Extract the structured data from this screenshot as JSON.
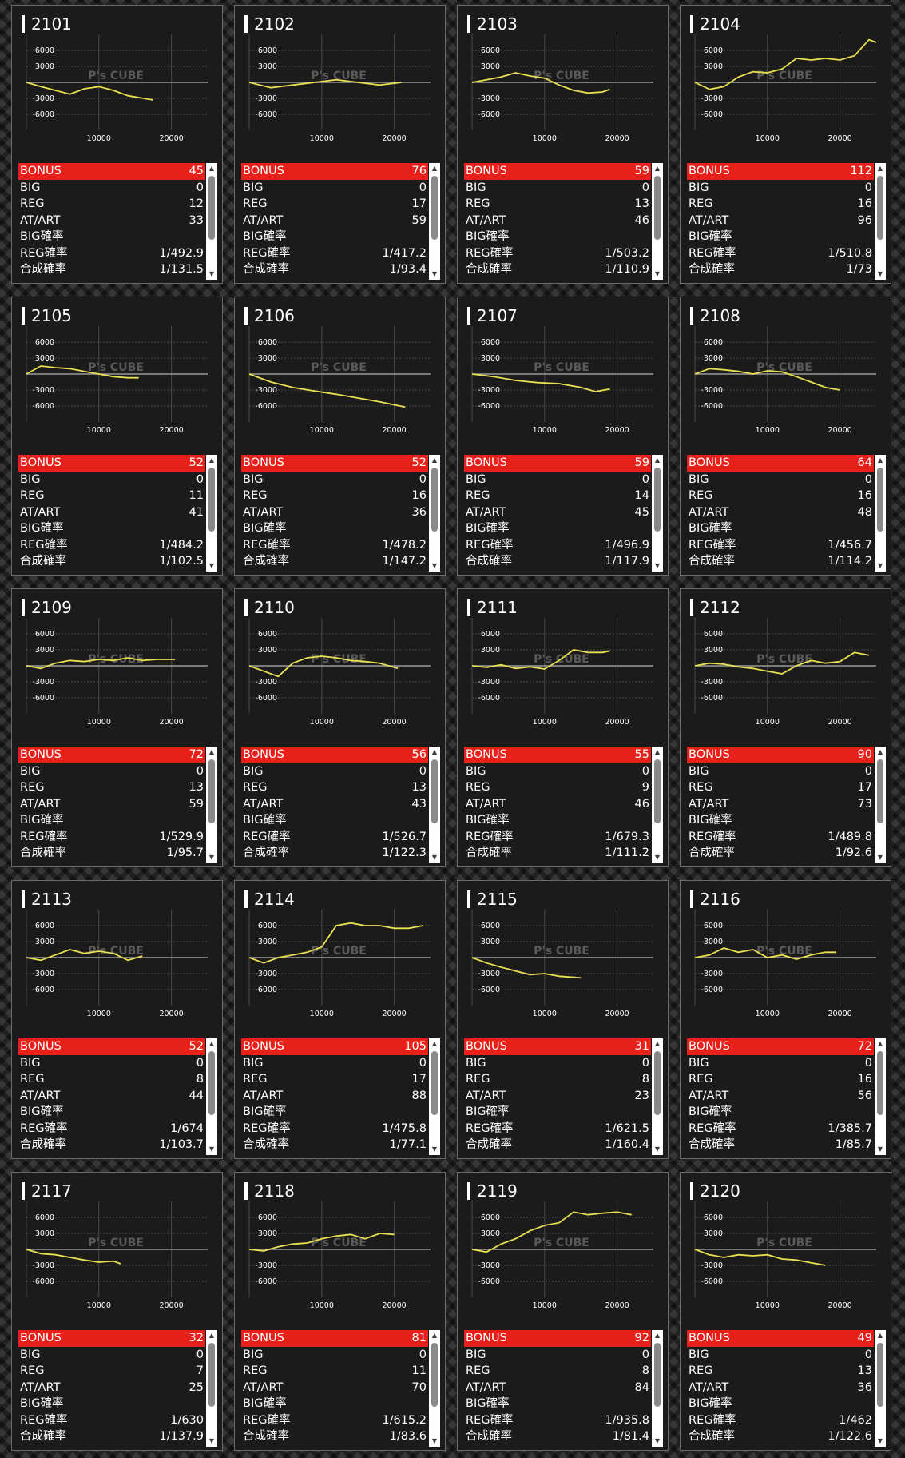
{
  "stat_labels": {
    "bonus": "BONUS",
    "big": "BIG",
    "reg": "REG",
    "at": "AT/ART",
    "big_rate": "BIG確率",
    "reg_rate": "REG確率",
    "total_rate": "合成確率"
  },
  "watermark": "P's CUBE",
  "colors": {
    "background": "#1b1b1b",
    "bonus_bar": "#e8201a",
    "line": "#e8e050",
    "grid": "#4a4a4a",
    "zero_line": "#9a9a9a"
  },
  "machines": [
    {
      "id": "2101",
      "bonus": "45",
      "big": "0",
      "reg": "12",
      "at": "33",
      "big_rate": "",
      "reg_rate": "1/492.9",
      "total_rate": "1/131.5"
    },
    {
      "id": "2102",
      "bonus": "76",
      "big": "0",
      "reg": "17",
      "at": "59",
      "big_rate": "",
      "reg_rate": "1/417.2",
      "total_rate": "1/93.4"
    },
    {
      "id": "2103",
      "bonus": "59",
      "big": "0",
      "reg": "13",
      "at": "46",
      "big_rate": "",
      "reg_rate": "1/503.2",
      "total_rate": "1/110.9"
    },
    {
      "id": "2104",
      "bonus": "112",
      "big": "0",
      "reg": "16",
      "at": "96",
      "big_rate": "",
      "reg_rate": "1/510.8",
      "total_rate": "1/73"
    },
    {
      "id": "2105",
      "bonus": "52",
      "big": "0",
      "reg": "11",
      "at": "41",
      "big_rate": "",
      "reg_rate": "1/484.2",
      "total_rate": "1/102.5"
    },
    {
      "id": "2106",
      "bonus": "52",
      "big": "0",
      "reg": "16",
      "at": "36",
      "big_rate": "",
      "reg_rate": "1/478.2",
      "total_rate": "1/147.2"
    },
    {
      "id": "2107",
      "bonus": "59",
      "big": "0",
      "reg": "14",
      "at": "45",
      "big_rate": "",
      "reg_rate": "1/496.9",
      "total_rate": "1/117.9"
    },
    {
      "id": "2108",
      "bonus": "64",
      "big": "0",
      "reg": "16",
      "at": "48",
      "big_rate": "",
      "reg_rate": "1/456.7",
      "total_rate": "1/114.2"
    },
    {
      "id": "2109",
      "bonus": "72",
      "big": "0",
      "reg": "13",
      "at": "59",
      "big_rate": "",
      "reg_rate": "1/529.9",
      "total_rate": "1/95.7"
    },
    {
      "id": "2110",
      "bonus": "56",
      "big": "0",
      "reg": "13",
      "at": "43",
      "big_rate": "",
      "reg_rate": "1/526.7",
      "total_rate": "1/122.3"
    },
    {
      "id": "2111",
      "bonus": "55",
      "big": "0",
      "reg": "9",
      "at": "46",
      "big_rate": "",
      "reg_rate": "1/679.3",
      "total_rate": "1/111.2"
    },
    {
      "id": "2112",
      "bonus": "90",
      "big": "0",
      "reg": "17",
      "at": "73",
      "big_rate": "",
      "reg_rate": "1/489.8",
      "total_rate": "1/92.6"
    },
    {
      "id": "2113",
      "bonus": "52",
      "big": "0",
      "reg": "8",
      "at": "44",
      "big_rate": "",
      "reg_rate": "1/674",
      "total_rate": "1/103.7"
    },
    {
      "id": "2114",
      "bonus": "105",
      "big": "0",
      "reg": "17",
      "at": "88",
      "big_rate": "",
      "reg_rate": "1/475.8",
      "total_rate": "1/77.1"
    },
    {
      "id": "2115",
      "bonus": "31",
      "big": "0",
      "reg": "8",
      "at": "23",
      "big_rate": "",
      "reg_rate": "1/621.5",
      "total_rate": "1/160.4"
    },
    {
      "id": "2116",
      "bonus": "72",
      "big": "0",
      "reg": "16",
      "at": "56",
      "big_rate": "",
      "reg_rate": "1/385.7",
      "total_rate": "1/85.7"
    },
    {
      "id": "2117",
      "bonus": "32",
      "big": "0",
      "reg": "7",
      "at": "25",
      "big_rate": "",
      "reg_rate": "1/630",
      "total_rate": "1/137.9"
    },
    {
      "id": "2118",
      "bonus": "81",
      "big": "0",
      "reg": "11",
      "at": "70",
      "big_rate": "",
      "reg_rate": "1/615.2",
      "total_rate": "1/83.6"
    },
    {
      "id": "2119",
      "bonus": "92",
      "big": "0",
      "reg": "8",
      "at": "84",
      "big_rate": "",
      "reg_rate": "1/935.8",
      "total_rate": "1/81.4"
    },
    {
      "id": "2120",
      "bonus": "49",
      "big": "0",
      "reg": "13",
      "at": "36",
      "big_rate": "",
      "reg_rate": "1/462",
      "total_rate": "1/122.6"
    }
  ],
  "chart_data": {
    "type": "line",
    "x_ticks": [
      10000,
      20000
    ],
    "y_ticks": [
      6000,
      3000,
      -3000,
      -6000
    ],
    "xlim": [
      0,
      25000
    ],
    "ylim": [
      -9000,
      9000
    ],
    "series": [
      [
        [
          0,
          0
        ],
        [
          2000,
          -800
        ],
        [
          4000,
          -1500
        ],
        [
          6000,
          -2200
        ],
        [
          8000,
          -1200
        ],
        [
          10000,
          -800
        ],
        [
          12000,
          -1500
        ],
        [
          14000,
          -2500
        ],
        [
          17500,
          -3300
        ]
      ],
      [
        [
          0,
          0
        ],
        [
          3000,
          -1000
        ],
        [
          6000,
          -500
        ],
        [
          9000,
          0
        ],
        [
          12000,
          500
        ],
        [
          15000,
          0
        ],
        [
          18000,
          -500
        ],
        [
          21000,
          0
        ]
      ],
      [
        [
          0,
          0
        ],
        [
          2000,
          500
        ],
        [
          4000,
          1000
        ],
        [
          6000,
          1800
        ],
        [
          8000,
          1200
        ],
        [
          10000,
          800
        ],
        [
          12000,
          -500
        ],
        [
          14000,
          -1500
        ],
        [
          16000,
          -2000
        ],
        [
          18000,
          -1800
        ],
        [
          19000,
          -1300
        ]
      ],
      [
        [
          0,
          0
        ],
        [
          2000,
          -1300
        ],
        [
          4000,
          -800
        ],
        [
          6000,
          1000
        ],
        [
          8000,
          2000
        ],
        [
          10000,
          1800
        ],
        [
          12000,
          2500
        ],
        [
          14000,
          4500
        ],
        [
          16000,
          4200
        ],
        [
          18000,
          4500
        ],
        [
          20000,
          4200
        ],
        [
          22000,
          5000
        ],
        [
          24000,
          8000
        ],
        [
          25000,
          7500
        ]
      ],
      [
        [
          0,
          0
        ],
        [
          2000,
          1500
        ],
        [
          4000,
          1200
        ],
        [
          6000,
          1000
        ],
        [
          8000,
          500
        ],
        [
          10000,
          0
        ],
        [
          12000,
          -500
        ],
        [
          14000,
          -700
        ],
        [
          15500,
          -700
        ]
      ],
      [
        [
          0,
          0
        ],
        [
          3000,
          -1500
        ],
        [
          6000,
          -2500
        ],
        [
          9000,
          -3200
        ],
        [
          12000,
          -3800
        ],
        [
          15000,
          -4500
        ],
        [
          18000,
          -5200
        ],
        [
          21500,
          -6200
        ]
      ],
      [
        [
          0,
          0
        ],
        [
          3000,
          -500
        ],
        [
          6000,
          -1200
        ],
        [
          9000,
          -1600
        ],
        [
          12000,
          -1800
        ],
        [
          15000,
          -2500
        ],
        [
          17000,
          -3300
        ],
        [
          19000,
          -2800
        ]
      ],
      [
        [
          0,
          0
        ],
        [
          2000,
          1000
        ],
        [
          4000,
          800
        ],
        [
          6000,
          500
        ],
        [
          8000,
          0
        ],
        [
          10000,
          600
        ],
        [
          12000,
          400
        ],
        [
          14000,
          -500
        ],
        [
          16000,
          -1500
        ],
        [
          18000,
          -2500
        ],
        [
          20000,
          -3000
        ]
      ],
      [
        [
          0,
          0
        ],
        [
          2000,
          -500
        ],
        [
          4000,
          500
        ],
        [
          6000,
          1000
        ],
        [
          8000,
          800
        ],
        [
          10000,
          1200
        ],
        [
          12000,
          1000
        ],
        [
          14000,
          1500
        ],
        [
          16000,
          1000
        ],
        [
          18000,
          1200
        ],
        [
          20500,
          1200
        ]
      ],
      [
        [
          0,
          0
        ],
        [
          2000,
          -1000
        ],
        [
          4000,
          -2000
        ],
        [
          6000,
          500
        ],
        [
          8000,
          1500
        ],
        [
          10000,
          1800
        ],
        [
          12000,
          1500
        ],
        [
          14000,
          1000
        ],
        [
          16000,
          800
        ],
        [
          18000,
          500
        ],
        [
          20500,
          -500
        ]
      ],
      [
        [
          0,
          0
        ],
        [
          2000,
          -300
        ],
        [
          4000,
          200
        ],
        [
          6000,
          -500
        ],
        [
          8000,
          -200
        ],
        [
          10000,
          -600
        ],
        [
          12000,
          1000
        ],
        [
          14000,
          3000
        ],
        [
          16000,
          2500
        ],
        [
          18000,
          2500
        ],
        [
          19000,
          2800
        ]
      ],
      [
        [
          0,
          0
        ],
        [
          2000,
          500
        ],
        [
          4000,
          300
        ],
        [
          6000,
          -200
        ],
        [
          8000,
          -500
        ],
        [
          10000,
          -1000
        ],
        [
          12000,
          -1500
        ],
        [
          14000,
          0
        ],
        [
          16000,
          1000
        ],
        [
          18000,
          500
        ],
        [
          20000,
          800
        ],
        [
          22000,
          2500
        ],
        [
          24000,
          2000
        ]
      ],
      [
        [
          0,
          0
        ],
        [
          2000,
          -500
        ],
        [
          4000,
          500
        ],
        [
          6000,
          1500
        ],
        [
          8000,
          800
        ],
        [
          10000,
          1200
        ],
        [
          12000,
          800
        ],
        [
          14000,
          -500
        ],
        [
          16000,
          300
        ]
      ],
      [
        [
          0,
          0
        ],
        [
          2000,
          -1000
        ],
        [
          4000,
          0
        ],
        [
          6000,
          500
        ],
        [
          8000,
          1000
        ],
        [
          10000,
          2000
        ],
        [
          12000,
          6000
        ],
        [
          14000,
          6500
        ],
        [
          16000,
          6000
        ],
        [
          18000,
          6000
        ],
        [
          20000,
          5500
        ],
        [
          22000,
          5500
        ],
        [
          24000,
          6000
        ]
      ],
      [
        [
          0,
          0
        ],
        [
          2000,
          -1000
        ],
        [
          4000,
          -1800
        ],
        [
          6000,
          -2500
        ],
        [
          8000,
          -3200
        ],
        [
          10000,
          -3000
        ],
        [
          12000,
          -3500
        ],
        [
          15000,
          -3800
        ]
      ],
      [
        [
          0,
          0
        ],
        [
          2000,
          500
        ],
        [
          4000,
          1800
        ],
        [
          6000,
          1000
        ],
        [
          8000,
          1500
        ],
        [
          10000,
          0
        ],
        [
          12000,
          500
        ],
        [
          14000,
          -300
        ],
        [
          16000,
          500
        ],
        [
          18000,
          1000
        ],
        [
          19500,
          1000
        ]
      ],
      [
        [
          0,
          0
        ],
        [
          2000,
          -800
        ],
        [
          4000,
          -1000
        ],
        [
          6000,
          -1500
        ],
        [
          8000,
          -2000
        ],
        [
          10000,
          -2400
        ],
        [
          12000,
          -2200
        ],
        [
          13000,
          -2700
        ]
      ],
      [
        [
          0,
          0
        ],
        [
          2000,
          -300
        ],
        [
          4000,
          500
        ],
        [
          6000,
          1000
        ],
        [
          8000,
          1200
        ],
        [
          10000,
          2000
        ],
        [
          12000,
          2500
        ],
        [
          14000,
          2800
        ],
        [
          16000,
          2000
        ],
        [
          18000,
          3000
        ],
        [
          20000,
          2800
        ]
      ],
      [
        [
          0,
          0
        ],
        [
          2000,
          -500
        ],
        [
          4000,
          1000
        ],
        [
          6000,
          2000
        ],
        [
          8000,
          3500
        ],
        [
          10000,
          4500
        ],
        [
          12000,
          5000
        ],
        [
          14000,
          7000
        ],
        [
          16000,
          6500
        ],
        [
          18000,
          6800
        ],
        [
          20000,
          7000
        ],
        [
          22000,
          6500
        ]
      ],
      [
        [
          0,
          0
        ],
        [
          2000,
          -1000
        ],
        [
          4000,
          -1500
        ],
        [
          6000,
          -1000
        ],
        [
          8000,
          -1200
        ],
        [
          10000,
          -1000
        ],
        [
          12000,
          -1800
        ],
        [
          14000,
          -2000
        ],
        [
          16000,
          -2500
        ],
        [
          18000,
          -3000
        ]
      ]
    ]
  }
}
